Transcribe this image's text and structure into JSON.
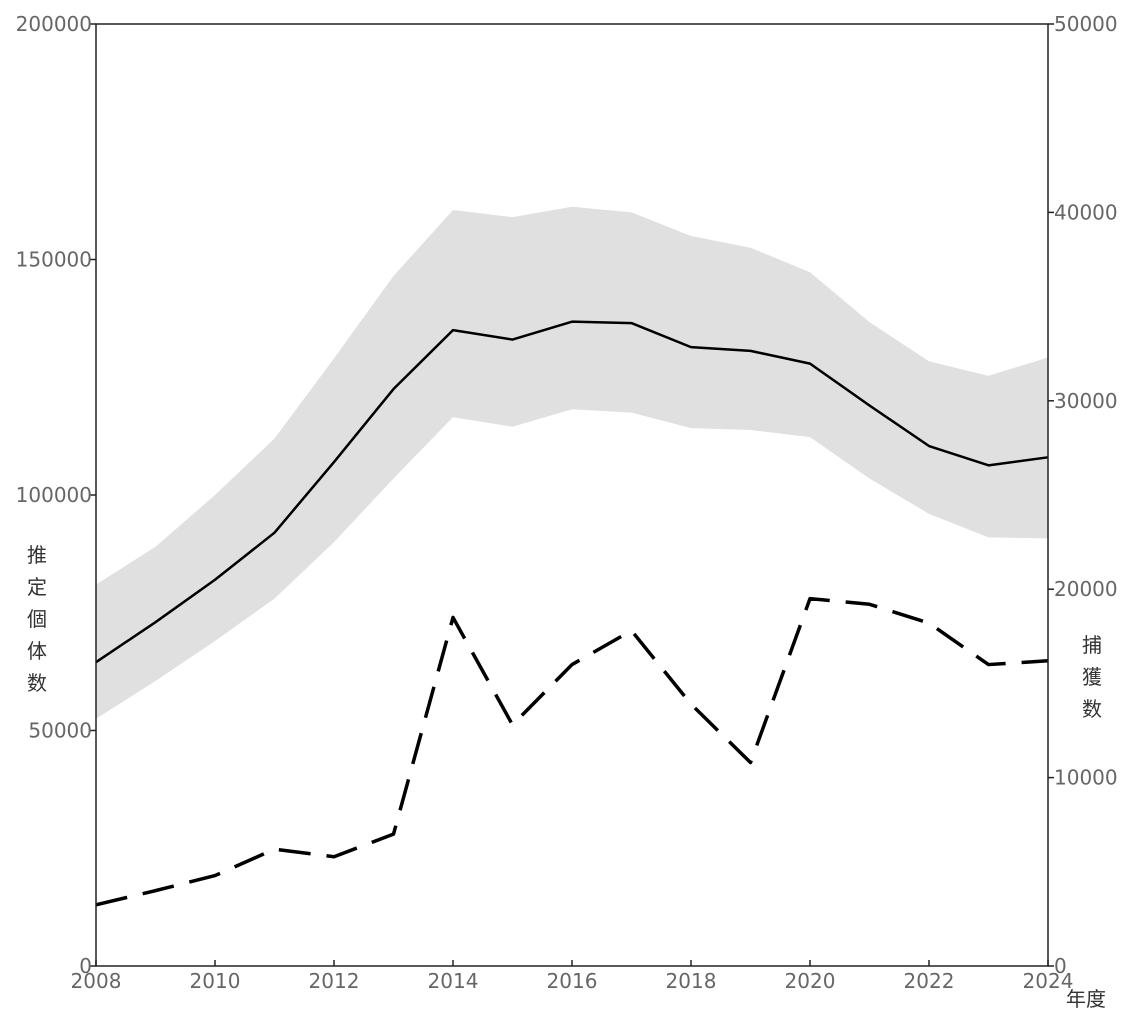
{
  "chart_data": {
    "type": "line",
    "title": "",
    "xlabel": "年度",
    "ylabel_left": "推定個体数",
    "ylabel_right": "捕獲数",
    "x": [
      2008,
      2009,
      2010,
      2011,
      2012,
      2013,
      2014,
      2015,
      2016,
      2017,
      2018,
      2019,
      2020,
      2021,
      2022,
      2023,
      2024
    ],
    "xlim": [
      2008,
      2024
    ],
    "x_ticks": [
      2008,
      2010,
      2012,
      2014,
      2016,
      2018,
      2020,
      2022,
      2024
    ],
    "ylim_left": [
      0,
      200000
    ],
    "y_ticks_left": [
      0,
      50000,
      100000,
      150000,
      200000
    ],
    "ylim_right": [
      0,
      50000
    ],
    "y_ticks_right": [
      0,
      10000,
      20000,
      30000,
      40000,
      50000
    ],
    "series": [
      {
        "axis": "left",
        "style": "solid",
        "values": [
          64500,
          73000,
          82000,
          92000,
          107000,
          122500,
          135000,
          133000,
          136800,
          136500,
          131400,
          130600,
          127900,
          119000,
          110400,
          106300,
          108000
        ]
      },
      {
        "axis": "left",
        "style": "band",
        "lower": [
          52500,
          60500,
          69000,
          78000,
          90000,
          103500,
          116500,
          114500,
          118200,
          117500,
          114200,
          113800,
          112300,
          103500,
          96000,
          91000,
          90800
        ],
        "upper": [
          81000,
          89000,
          100000,
          112000,
          129000,
          146500,
          160500,
          159000,
          161200,
          160000,
          155000,
          152500,
          147300,
          136700,
          128400,
          125300,
          129200
        ]
      },
      {
        "axis": "right",
        "style": "dashed",
        "values": [
          3250,
          4000,
          4800,
          6200,
          5800,
          7000,
          18500,
          12800,
          16000,
          17800,
          13900,
          10800,
          19500,
          19200,
          18200,
          16000,
          16200
        ]
      }
    ],
    "grid": false,
    "legend": "none"
  }
}
